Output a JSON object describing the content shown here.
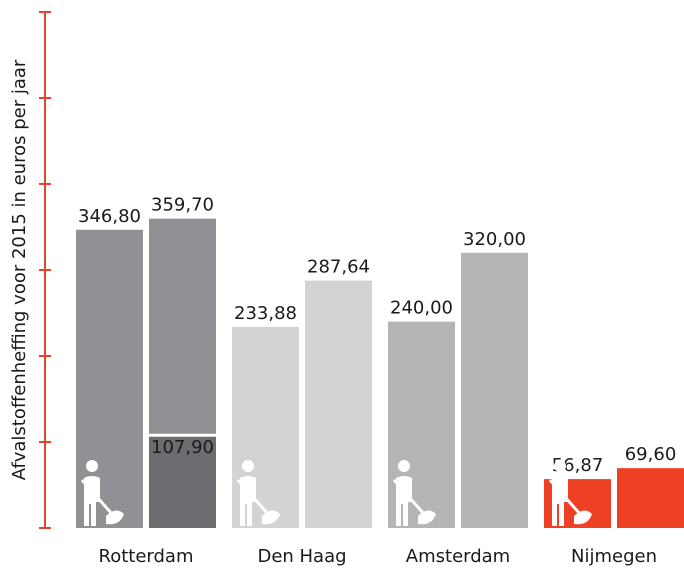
{
  "chart_data": {
    "type": "bar",
    "y_label": "Afvalstoffenheffing voor 2015 in euros per jaar",
    "categories": [
      "Rotterdam",
      "Den Haag",
      "Amsterdam",
      "Nijmegen"
    ],
    "colors": [
      "#909194",
      "#d2d3d5",
      "#b4b5b7",
      "#ee4024"
    ],
    "series": [
      {
        "values": [
          346.8,
          233.88,
          240.0,
          56.87
        ],
        "value_labels": [
          "346,80",
          "233,88",
          "240,00",
          "56,87"
        ]
      },
      {
        "values": [
          359.7,
          287.64,
          320.0,
          69.6
        ],
        "value_labels": [
          "359,70",
          "287,64",
          "320,00",
          "69,60"
        ]
      },
      {
        "color": "#6c6d70",
        "values": [
          107.9,
          null,
          null,
          null
        ],
        "value_labels": [
          "107,90",
          null,
          null,
          null
        ]
      }
    ],
    "ylim": [
      0,
      600
    ],
    "yticks": [
      0,
      100,
      200,
      300,
      400,
      500,
      600
    ],
    "axis_color": "#e5452c"
  }
}
